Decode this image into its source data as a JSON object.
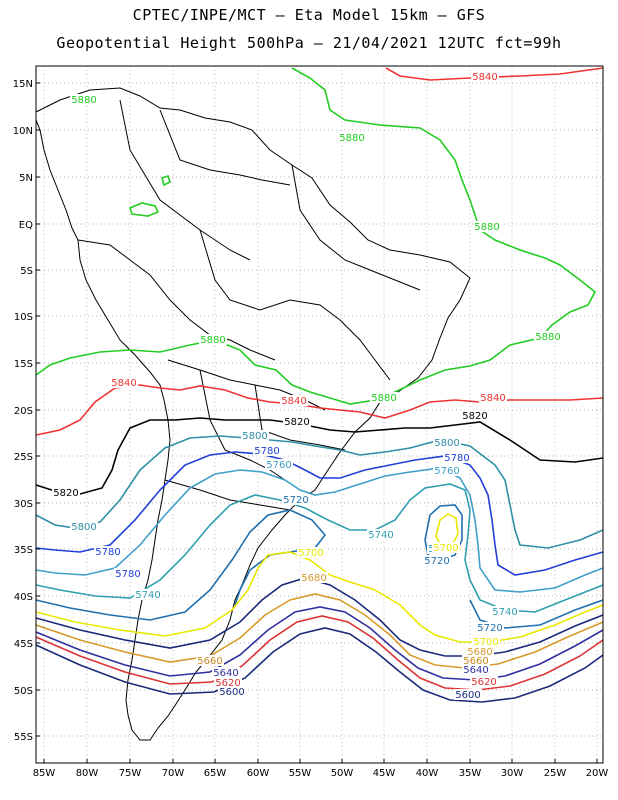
{
  "title_line1": "CPTEC/INPE/MCT –  Eta Model 15km – GFS",
  "title_line2": "Geopotential Height 500hPa – 21/04/2021 12UTC fct=99h",
  "lat_ticks": [
    "15N",
    "10N",
    "5N",
    "EQ",
    "5S",
    "10S",
    "15S",
    "20S",
    "25S",
    "30S",
    "35S",
    "40S",
    "45S",
    "50S",
    "55S"
  ],
  "lon_ticks": [
    "85W",
    "80W",
    "75W",
    "70W",
    "65W",
    "60W",
    "55W",
    "50W",
    "45W",
    "40W",
    "35W",
    "30W",
    "25W",
    "20W"
  ],
  "colors": {
    "5880": "#22cc22",
    "5840": "#ee3333",
    "5820": "#000000",
    "5800": "#2f8fa8",
    "5780": "#1f3fd8",
    "5760": "#3f9fc8",
    "5740": "#2f9fb0",
    "5720": "#1f6faf",
    "5700": "#e8e800",
    "5680": "#d99a2a",
    "5660": "#c78a22",
    "5640": "#2f2f9f",
    "5620": "#dd3333",
    "5600": "#1a2a7a",
    "coast": "#000000",
    "grid": "#a0a0a0"
  },
  "contour_labels": [
    {
      "text": "5880",
      "color_key": "5880"
    },
    {
      "text": "5880",
      "color_key": "5880"
    },
    {
      "text": "5880",
      "color_key": "5880"
    },
    {
      "text": "5880",
      "color_key": "5880"
    },
    {
      "text": "5880",
      "color_key": "5880"
    },
    {
      "text": "5880",
      "color_key": "5880"
    },
    {
      "text": "5840",
      "color_key": "5840"
    },
    {
      "text": "5840",
      "color_key": "5840"
    },
    {
      "text": "5840",
      "color_key": "5840"
    },
    {
      "text": "5840",
      "color_key": "5840"
    },
    {
      "text": "5820",
      "color_key": "5820"
    },
    {
      "text": "5820",
      "color_key": "5820"
    },
    {
      "text": "5820",
      "color_key": "5820"
    },
    {
      "text": "5800",
      "color_key": "5800"
    },
    {
      "text": "5800",
      "color_key": "5800"
    },
    {
      "text": "5800",
      "color_key": "5800"
    },
    {
      "text": "5780",
      "color_key": "5780"
    },
    {
      "text": "5780",
      "color_key": "5780"
    },
    {
      "text": "5780",
      "color_key": "5780"
    },
    {
      "text": "5780",
      "color_key": "5780"
    },
    {
      "text": "5760",
      "color_key": "5760"
    },
    {
      "text": "5760",
      "color_key": "5760"
    },
    {
      "text": "5760",
      "color_key": "5760"
    },
    {
      "text": "5740",
      "color_key": "5740"
    },
    {
      "text": "5740",
      "color_key": "5740"
    },
    {
      "text": "5740",
      "color_key": "5740"
    },
    {
      "text": "5720",
      "color_key": "5720"
    },
    {
      "text": "5720",
      "color_key": "5720"
    },
    {
      "text": "5720",
      "color_key": "5720"
    },
    {
      "text": "5700",
      "color_key": "5700"
    },
    {
      "text": "5700",
      "color_key": "5700"
    },
    {
      "text": "5700",
      "color_key": "5700"
    },
    {
      "text": "5680",
      "color_key": "5680"
    },
    {
      "text": "5680",
      "color_key": "5680"
    },
    {
      "text": "5660",
      "color_key": "5660"
    },
    {
      "text": "5660",
      "color_key": "5660"
    },
    {
      "text": "5640",
      "color_key": "5640"
    },
    {
      "text": "5640",
      "color_key": "5640"
    },
    {
      "text": "5620",
      "color_key": "5620"
    },
    {
      "text": "5620",
      "color_key": "5620"
    },
    {
      "text": "5600",
      "color_key": "5600"
    },
    {
      "text": "5600",
      "color_key": "5600"
    }
  ]
}
